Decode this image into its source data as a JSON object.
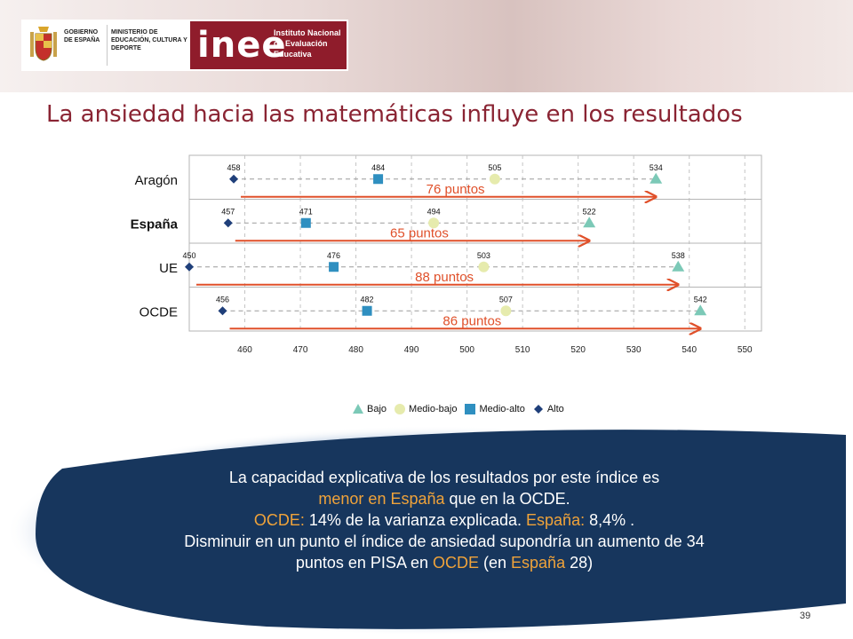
{
  "header": {
    "gov_label": "GOBIERNO DE ESPAÑA",
    "ministry_label": "MINISTERIO DE EDUCACIÓN, CULTURA Y DEPORTE",
    "logo_word": "inee",
    "institute_label": "Instituto Nacional de Evaluación Educativa"
  },
  "title": "La ansiedad hacia las matemáticas influye en los resultados",
  "chart_data": {
    "type": "scatter",
    "orientation": "horizontal",
    "categories": [
      "Aragón",
      "España",
      "UE",
      "OCDE"
    ],
    "series": [
      {
        "name": "Bajo",
        "marker": "triangle",
        "color": "#7cc9b7",
        "values": [
          534,
          522,
          538,
          542
        ]
      },
      {
        "name": "Medio-bajo",
        "marker": "circle",
        "color": "#e6ebad",
        "values": [
          505,
          494,
          503,
          507
        ]
      },
      {
        "name": "Medio-alto",
        "marker": "square",
        "color": "#2f8fc0",
        "values": [
          484,
          471,
          476,
          482
        ]
      },
      {
        "name": "Alto",
        "marker": "diamond",
        "color": "#1f3f7a",
        "values": [
          458,
          457,
          450,
          456
        ]
      }
    ],
    "xlim": [
      450,
      553
    ],
    "xticks": [
      460,
      470,
      480,
      490,
      500,
      510,
      520,
      530,
      540,
      550
    ],
    "gap_labels": [
      "76 puntos",
      "65 puntos",
      "88 puntos",
      "86 puntos"
    ],
    "bold_category": "España",
    "legend_position": "bottom",
    "grid": true
  },
  "summary": {
    "line1": "La  capacidad explicativa de los resultados por este índice es",
    "line2_hl": "menor en España",
    "line2_rest": " que en la OCDE.",
    "line3_hl1": "OCDE:",
    "line3_mid": " 14%  de la varianza explicada. ",
    "line3_hl2": "España:",
    "line3_rest": "  8,4% .",
    "line4": "Disminuir en un punto el índice de ansiedad supondría un aumento de 34",
    "line5_a": "puntos en PISA  en ",
    "line5_hl1": "OCDE",
    "line5_b": " (en ",
    "line5_hl2": "España",
    "line5_c": " 28)"
  },
  "page_number": "39"
}
